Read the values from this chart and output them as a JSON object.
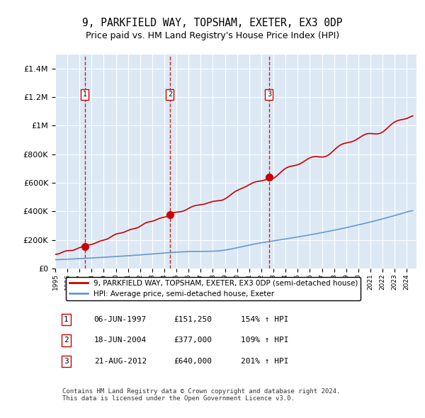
{
  "title": "9, PARKFIELD WAY, TOPSHAM, EXETER, EX3 0DP",
  "subtitle": "Price paid vs. HM Land Registry's House Price Index (HPI)",
  "ylabel": "",
  "background_color": "#ffffff",
  "plot_bg_color": "#dce9f5",
  "grid_color": "#ffffff",
  "sale_dates": [
    1997.44,
    2004.46,
    2012.64
  ],
  "sale_prices": [
    151250,
    377000,
    640000
  ],
  "sale_labels": [
    "1",
    "2",
    "3"
  ],
  "legend_entries": [
    "9, PARKFIELD WAY, TOPSHAM, EXETER, EX3 0DP (semi-detached house)",
    "HPI: Average price, semi-detached house, Exeter"
  ],
  "table_data": [
    [
      "1",
      "06-JUN-1997",
      "£151,250",
      "154% ↑ HPI"
    ],
    [
      "2",
      "18-JUN-2004",
      "£377,000",
      "109% ↑ HPI"
    ],
    [
      "3",
      "21-AUG-2012",
      "£640,000",
      "201% ↑ HPI"
    ]
  ],
  "footer": "Contains HM Land Registry data © Crown copyright and database right 2024.\nThis data is licensed under the Open Government Licence v3.0.",
  "red_color": "#cc0000",
  "blue_color": "#6699cc",
  "marker_color": "#cc0000",
  "dashed_color": "#cc0000",
  "ylim": [
    0,
    1500000
  ],
  "xlim": [
    1995,
    2024.5
  ]
}
